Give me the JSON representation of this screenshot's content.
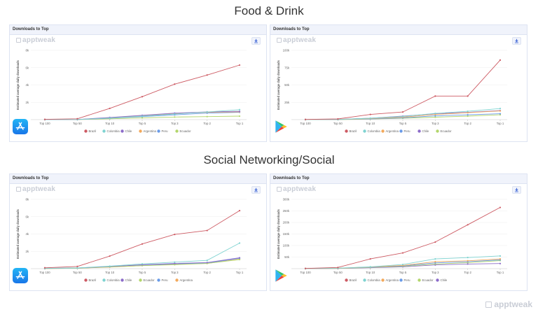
{
  "sections": [
    {
      "title": "Food & Drink"
    },
    {
      "title": "Social Networking/Social"
    }
  ],
  "panel_title": "Downloads to Top",
  "brand": "apptweak",
  "colors": {
    "Brazil": "#cd5a63",
    "Colombia": "#7fd3d1",
    "Chile": "#8c6cc9",
    "Argentina": "#f2a95c",
    "Peru": "#6a9be8",
    "Ecuador": "#b3d66c"
  },
  "chart_data": [
    {
      "type": "line",
      "store": "App Store",
      "categories": [
        "Top 100",
        "Top 50",
        "Top 10",
        "Top 5",
        "Top 3",
        "Top 2",
        "Top 1"
      ],
      "ylabel": "Estimated average daily downloads",
      "yticks": [
        "",
        "2k",
        "4k",
        "6k",
        "8k"
      ],
      "ylim": [
        0,
        8000
      ],
      "series": [
        {
          "name": "Brazil",
          "values": [
            30,
            100,
            1300,
            2650,
            4100,
            5150,
            6300
          ]
        },
        {
          "name": "Colombia",
          "values": [
            10,
            20,
            180,
            400,
            650,
            880,
            1150
          ]
        },
        {
          "name": "Chile",
          "values": [
            10,
            20,
            250,
            500,
            750,
            900,
            950
          ]
        },
        {
          "name": "Argentina",
          "values": [
            10,
            20,
            200,
            450,
            700,
            850,
            900
          ]
        },
        {
          "name": "Peru",
          "values": [
            8,
            15,
            150,
            350,
            550,
            750,
            850
          ]
        },
        {
          "name": "Ecuador",
          "values": [
            5,
            10,
            100,
            200,
            300,
            350,
            400
          ]
        }
      ]
    },
    {
      "type": "line",
      "store": "Google Play",
      "categories": [
        "Top 100",
        "Top 50",
        "Top 10",
        "Top 5",
        "Top 3",
        "Top 2",
        "Top 1"
      ],
      "ylabel": "Estimated average daily downloads",
      "yticks": [
        "",
        "25k",
        "50k",
        "75k",
        "100k"
      ],
      "ylim": [
        0,
        100000
      ],
      "series": [
        {
          "name": "Brazil",
          "values": [
            300,
            1000,
            7500,
            11000,
            34000,
            34000,
            86000
          ]
        },
        {
          "name": "Colombia",
          "values": [
            100,
            300,
            2000,
            4500,
            9000,
            12000,
            16000
          ]
        },
        {
          "name": "Argentina",
          "values": [
            100,
            300,
            1500,
            3500,
            7500,
            10000,
            12500
          ]
        },
        {
          "name": "Peru",
          "values": [
            100,
            200,
            1000,
            2500,
            5500,
            7000,
            8500
          ]
        },
        {
          "name": "Chile",
          "values": [
            100,
            300,
            2000,
            5000,
            8500,
            10500,
            13000
          ]
        },
        {
          "name": "Ecuador",
          "values": [
            50,
            150,
            800,
            2000,
            3500,
            5000,
            7000
          ]
        }
      ]
    },
    {
      "type": "line",
      "store": "App Store",
      "categories": [
        "Top 100",
        "Top 50",
        "Top 10",
        "Top 5",
        "Top 3",
        "Top 2",
        "Top 1"
      ],
      "ylabel": "Estimated average daily downloads",
      "yticks": [
        "",
        "2k",
        "4k",
        "6k",
        "8k"
      ],
      "ylim": [
        0,
        8000
      ],
      "series": [
        {
          "name": "Brazil",
          "values": [
            100,
            250,
            1450,
            2850,
            3950,
            4400,
            6700
          ]
        },
        {
          "name": "Colombia",
          "values": [
            30,
            80,
            280,
            550,
            750,
            950,
            2950
          ]
        },
        {
          "name": "Chile",
          "values": [
            30,
            70,
            250,
            450,
            600,
            700,
            1250
          ]
        },
        {
          "name": "Ecuador",
          "values": [
            20,
            50,
            200,
            350,
            450,
            600,
            1050
          ]
        },
        {
          "name": "Peru",
          "values": [
            25,
            60,
            220,
            400,
            550,
            650,
            1200
          ]
        },
        {
          "name": "Argentina",
          "values": [
            20,
            50,
            180,
            350,
            500,
            600,
            1100
          ]
        }
      ]
    },
    {
      "type": "line",
      "store": "Google Play",
      "categories": [
        "Top 100",
        "Top 50",
        "Top 10",
        "Top 5",
        "Top 3",
        "Top 2",
        "Top 1"
      ],
      "ylabel": "Estimated average daily downloads",
      "yticks": [
        "",
        "50k",
        "100k",
        "150k",
        "200k",
        "250k",
        "300k"
      ],
      "ylim": [
        0,
        300000
      ],
      "series": [
        {
          "name": "Brazil",
          "values": [
            1000,
            5000,
            42000,
            68000,
            115000,
            190000,
            265000
          ]
        },
        {
          "name": "Colombia",
          "values": [
            500,
            2000,
            8000,
            18000,
            42000,
            48000,
            55000
          ]
        },
        {
          "name": "Argentina",
          "values": [
            500,
            1500,
            7000,
            14000,
            30000,
            34000,
            42000
          ]
        },
        {
          "name": "Peru",
          "values": [
            400,
            1200,
            6000,
            12000,
            25000,
            30000,
            38000
          ]
        },
        {
          "name": "Ecuador",
          "values": [
            300,
            1000,
            5000,
            10000,
            20000,
            26000,
            35000
          ]
        },
        {
          "name": "Chile",
          "values": [
            300,
            800,
            4000,
            8000,
            16000,
            20000,
            22000
          ]
        }
      ]
    }
  ]
}
